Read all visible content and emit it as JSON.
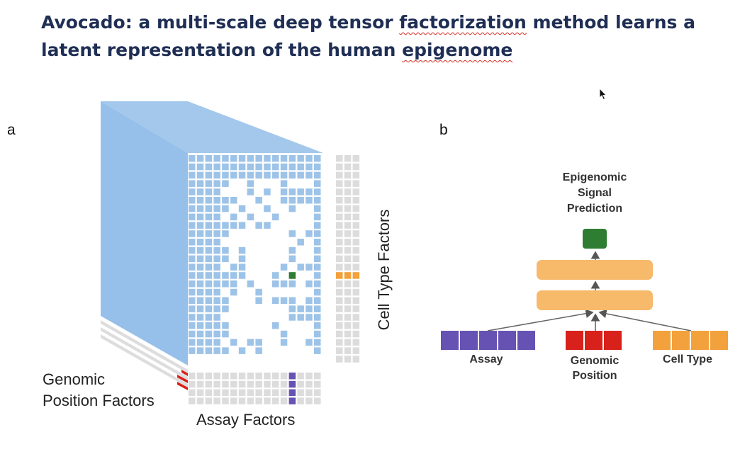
{
  "title": {
    "part1": "Avocado: a multi-scale deep tensor ",
    "word_factorization": "factorization",
    "part2": " method learns a latent representation of the human ",
    "word_epigenome": "epigenome"
  },
  "panel_a": {
    "letter": "a",
    "genomic_position_factors_line1": "Genomic",
    "genomic_position_factors_line2": "Position Factors",
    "assay_factors": "Assay Factors",
    "cell_type_factors": "Cell Type Factors"
  },
  "panel_b": {
    "letter": "b",
    "output_line1": "Epigenomic",
    "output_line2": "Signal",
    "output_line3": "Prediction",
    "input_assay": "Assay",
    "input_genomic_line1": "Genomic",
    "input_genomic_line2": "Position",
    "input_cell_type": "Cell Type"
  },
  "colors": {
    "title": "#1f2e54",
    "tensor_blue": "#9dc3e8",
    "grid_gray": "#dcdcdc",
    "assay_purple": "#6652b3",
    "genomic_red": "#d9211c",
    "cell_type_orange": "#f2a13c",
    "hidden_layer": "#f6b96a",
    "output_green": "#2e7d32"
  }
}
